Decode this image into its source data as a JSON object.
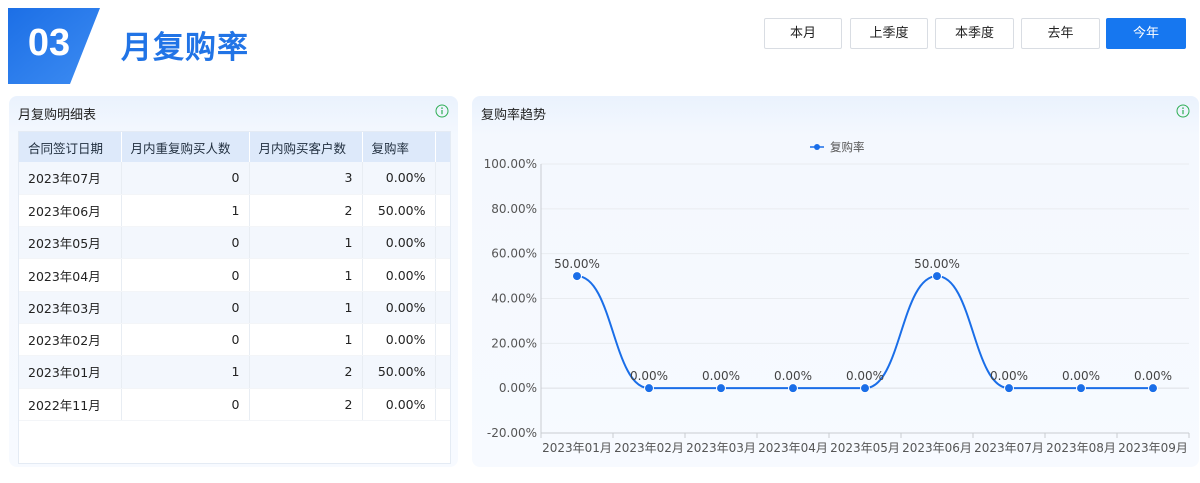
{
  "header": {
    "badge_number": "03",
    "title": "月复购率",
    "badge_color": "#2174e6"
  },
  "period_buttons": [
    {
      "label": "本月",
      "active": false
    },
    {
      "label": "上季度",
      "active": false
    },
    {
      "label": "本季度",
      "active": false
    },
    {
      "label": "去年",
      "active": false
    },
    {
      "label": "今年",
      "active": true
    }
  ],
  "detail_panel": {
    "title": "月复购明细表",
    "info_icon": "info-circle-icon",
    "columns": [
      "合同签订日期",
      "月内重复购买人数",
      "月内购买客户数",
      "复购率"
    ],
    "rows": [
      [
        "2023年07月",
        "0",
        "3",
        "0.00%"
      ],
      [
        "2023年06月",
        "1",
        "2",
        "50.00%"
      ],
      [
        "2023年05月",
        "0",
        "1",
        "0.00%"
      ],
      [
        "2023年04月",
        "0",
        "1",
        "0.00%"
      ],
      [
        "2023年03月",
        "0",
        "1",
        "0.00%"
      ],
      [
        "2023年02月",
        "0",
        "1",
        "0.00%"
      ],
      [
        "2023年01月",
        "1",
        "2",
        "50.00%"
      ],
      [
        "2022年11月",
        "0",
        "2",
        "0.00%"
      ]
    ]
  },
  "trend_panel": {
    "title": "复购率趋势",
    "info_icon": "info-circle-icon"
  },
  "chart_data": {
    "type": "line",
    "series": [
      {
        "name": "复购率",
        "color": "#1a6ee8",
        "values": [
          50,
          0,
          0,
          0,
          0,
          50,
          0,
          0,
          0
        ],
        "labels": [
          "50.00%",
          "0.00%",
          "0.00%",
          "0.00%",
          "0.00%",
          "50.00%",
          "0.00%",
          "0.00%",
          "0.00%"
        ]
      }
    ],
    "categories": [
      "2023年01月",
      "2023年02月",
      "2023年03月",
      "2023年04月",
      "2023年05月",
      "2023年06月",
      "2023年07月",
      "2023年08月",
      "2023年09月"
    ],
    "y_ticks": [
      "100.00%",
      "80.00%",
      "60.00%",
      "40.00%",
      "20.00%",
      "0.00%",
      "-20.00%"
    ],
    "ylim": [
      -20,
      100
    ],
    "smooth": true,
    "grid": true,
    "legend": "top-center"
  }
}
